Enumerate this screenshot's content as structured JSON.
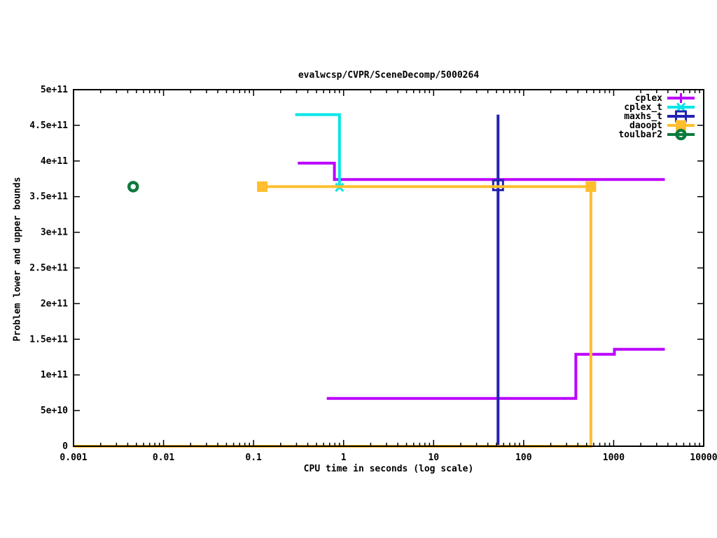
{
  "chart_data": {
    "type": "line",
    "title": "evalwcsp/CVPR/SceneDecomp/5000264",
    "xlabel": "CPU time in seconds (log scale)",
    "ylabel": "Problem lower and upper bounds",
    "x_scale": "log",
    "y_scale": "linear",
    "xlim": [
      0.001,
      10000
    ],
    "ylim": [
      0,
      500000000000.0
    ],
    "grid": false,
    "x_ticks": [
      {
        "v": 0.001,
        "label": "0.001"
      },
      {
        "v": 0.01,
        "label": "0.01"
      },
      {
        "v": 0.1,
        "label": "0.1"
      },
      {
        "v": 1,
        "label": "1"
      },
      {
        "v": 10,
        "label": "10"
      },
      {
        "v": 100,
        "label": "100"
      },
      {
        "v": 1000,
        "label": "1000"
      },
      {
        "v": 10000,
        "label": "10000"
      }
    ],
    "y_ticks": [
      {
        "v": 0,
        "label": "0"
      },
      {
        "v": 50000000000.0,
        "label": "5e+10"
      },
      {
        "v": 100000000000.0,
        "label": "1e+11"
      },
      {
        "v": 150000000000.0,
        "label": "1.5e+11"
      },
      {
        "v": 200000000000.0,
        "label": "2e+11"
      },
      {
        "v": 250000000000.0,
        "label": "2.5e+11"
      },
      {
        "v": 300000000000.0,
        "label": "3e+11"
      },
      {
        "v": 350000000000.0,
        "label": "3.5e+11"
      },
      {
        "v": 400000000000.0,
        "label": "4e+11"
      },
      {
        "v": 450000000000.0,
        "label": "4.5e+11"
      },
      {
        "v": 500000000000.0,
        "label": "5e+11"
      }
    ],
    "legend": {
      "position": "top-right-inside",
      "entries": [
        "cplex",
        "cplex_t",
        "maxhs_t",
        "daoopt",
        "toulbar2"
      ]
    },
    "series": [
      {
        "name": "cplex",
        "color": "#bb00ff",
        "marker": "plus",
        "lines": [
          [
            [
              0.31,
              397000000000.0
            ],
            [
              0.79,
              397000000000.0
            ],
            [
              0.79,
              374000000000.0
            ],
            [
              3700,
              374000000000.0
            ]
          ],
          [
            [
              0.65,
              67000000000.0
            ],
            [
              380,
              67000000000.0
            ],
            [
              380,
              129000000000.0
            ],
            [
              1020,
              129000000000.0
            ],
            [
              1020,
              136000000000.0
            ],
            [
              3700,
              136000000000.0
            ]
          ]
        ],
        "points": []
      },
      {
        "name": "cplex_t",
        "color": "#00e6e6",
        "marker": "cross",
        "lines": [
          [
            [
              0.29,
              465000000000.0
            ],
            [
              0.9,
              465000000000.0
            ],
            [
              0.9,
              363000000000.0
            ]
          ]
        ],
        "points": [
          [
            0.9,
            363000000000.0
          ]
        ]
      },
      {
        "name": "maxhs_t",
        "color": "#2222b2",
        "marker": "open-square",
        "lines": [
          [
            [
              52,
              465000000000.0
            ],
            [
              52,
              0
            ]
          ]
        ],
        "points": [
          [
            52,
            366000000000.0
          ]
        ]
      },
      {
        "name": "daoopt",
        "color": "#ffbe2e",
        "marker": "filled-square",
        "lines": [
          [
            [
              0.125,
              364000000000.0
            ],
            [
              558,
              364000000000.0
            ],
            [
              558,
              0
            ],
            [
              0.001,
              0
            ]
          ]
        ],
        "points": [
          [
            0.125,
            364000000000.0
          ],
          [
            558,
            364000000000.0
          ]
        ]
      },
      {
        "name": "toulbar2",
        "color": "#0e7a3d",
        "marker": "open-circle",
        "lines": [],
        "points": [
          [
            0.0046,
            364000000000.0
          ]
        ]
      }
    ]
  }
}
